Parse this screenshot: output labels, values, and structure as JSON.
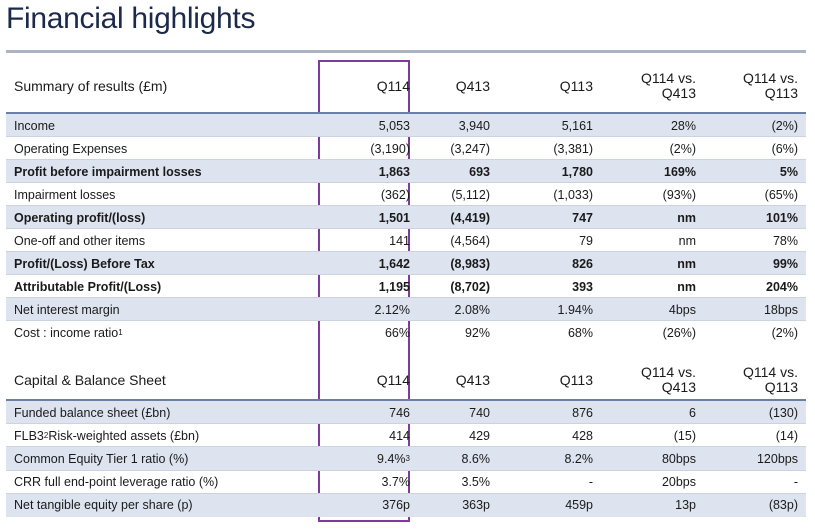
{
  "title": "Financial highlights",
  "summary": {
    "headers": [
      "Summary of results (£m)",
      "Q114",
      "Q413",
      "Q113",
      "Q114 vs.\nQ413",
      "Q114 vs.\nQ113"
    ],
    "rows": [
      {
        "label": "Income",
        "values": [
          "5,053",
          "3,940",
          "5,161",
          "28%",
          "(2%)"
        ],
        "bold": false,
        "shaded": true
      },
      {
        "label": "Operating Expenses",
        "values": [
          "(3,190)",
          "(3,247)",
          "(3,381)",
          "(2%)",
          "(6%)"
        ],
        "bold": false,
        "shaded": false
      },
      {
        "label": "Profit before impairment losses",
        "values": [
          "1,863",
          "693",
          "1,780",
          "169%",
          "5%"
        ],
        "bold": true,
        "shaded": true
      },
      {
        "label": "Impairment losses",
        "values": [
          "(362)",
          "(5,112)",
          "(1,033)",
          "(93%)",
          "(65%)"
        ],
        "bold": false,
        "shaded": false
      },
      {
        "label": "Operating profit/(loss)",
        "values": [
          "1,501",
          "(4,419)",
          "747",
          "nm",
          "101%"
        ],
        "bold": true,
        "shaded": true
      },
      {
        "label": "One-off and other items",
        "values": [
          "141",
          "(4,564)",
          "79",
          "nm",
          "78%"
        ],
        "bold": false,
        "shaded": false
      },
      {
        "label": "Profit/(Loss) Before Tax",
        "values": [
          "1,642",
          "(8,983)",
          "826",
          "nm",
          "99%"
        ],
        "bold": true,
        "shaded": true
      },
      {
        "label": "Attributable Profit/(Loss)",
        "values": [
          "1,195",
          "(8,702)",
          "393",
          "nm",
          "204%"
        ],
        "bold": true,
        "shaded": false
      },
      {
        "label": "Net interest margin",
        "values": [
          "2.12%",
          "2.08%",
          "1.94%",
          "4bps",
          "18bps"
        ],
        "bold": false,
        "shaded": true
      },
      {
        "label": "Cost : income ratio",
        "label_sup": "1",
        "values": [
          "66%",
          "92%",
          "68%",
          "(26%)",
          "(2%)"
        ],
        "bold": false,
        "shaded": false
      }
    ]
  },
  "capital": {
    "headers": [
      "Capital & Balance Sheet",
      "Q114",
      "Q413",
      "Q113",
      "Q114 vs.\nQ413",
      "Q114 vs.\nQ113"
    ],
    "rows": [
      {
        "label": "Funded balance sheet (£bn)",
        "values": [
          "746",
          "740",
          "876",
          "6",
          "(130)"
        ],
        "bold": false,
        "shaded": true
      },
      {
        "label_pre": "FLB3",
        "label_sup": "2",
        "label": " Risk-weighted assets (£bn)",
        "values": [
          "414",
          "429",
          "428",
          "(15)",
          "(14)"
        ],
        "bold": false,
        "shaded": false
      },
      {
        "label": "Common Equity Tier 1 ratio (%)",
        "values": [
          "9.4%",
          "8.6%",
          "8.2%",
          "80bps",
          "120bps"
        ],
        "value0_sup": "3",
        "bold": false,
        "shaded": true
      },
      {
        "label": "CRR full end-point leverage ratio (%)",
        "values": [
          "3.7%",
          "3.5%",
          "-",
          "20bps",
          "-"
        ],
        "bold": false,
        "shaded": false
      },
      {
        "label": "Net tangible equity per share (p)",
        "values": [
          "376p",
          "363p",
          "459p",
          "13p",
          "(83p)"
        ],
        "bold": false,
        "shaded": true
      }
    ]
  },
  "colors": {
    "header_rule": "#6a7fa6",
    "shade": "#dde3ef",
    "highlight_box": "#7e3a9c",
    "title": "#1b2a4a"
  }
}
